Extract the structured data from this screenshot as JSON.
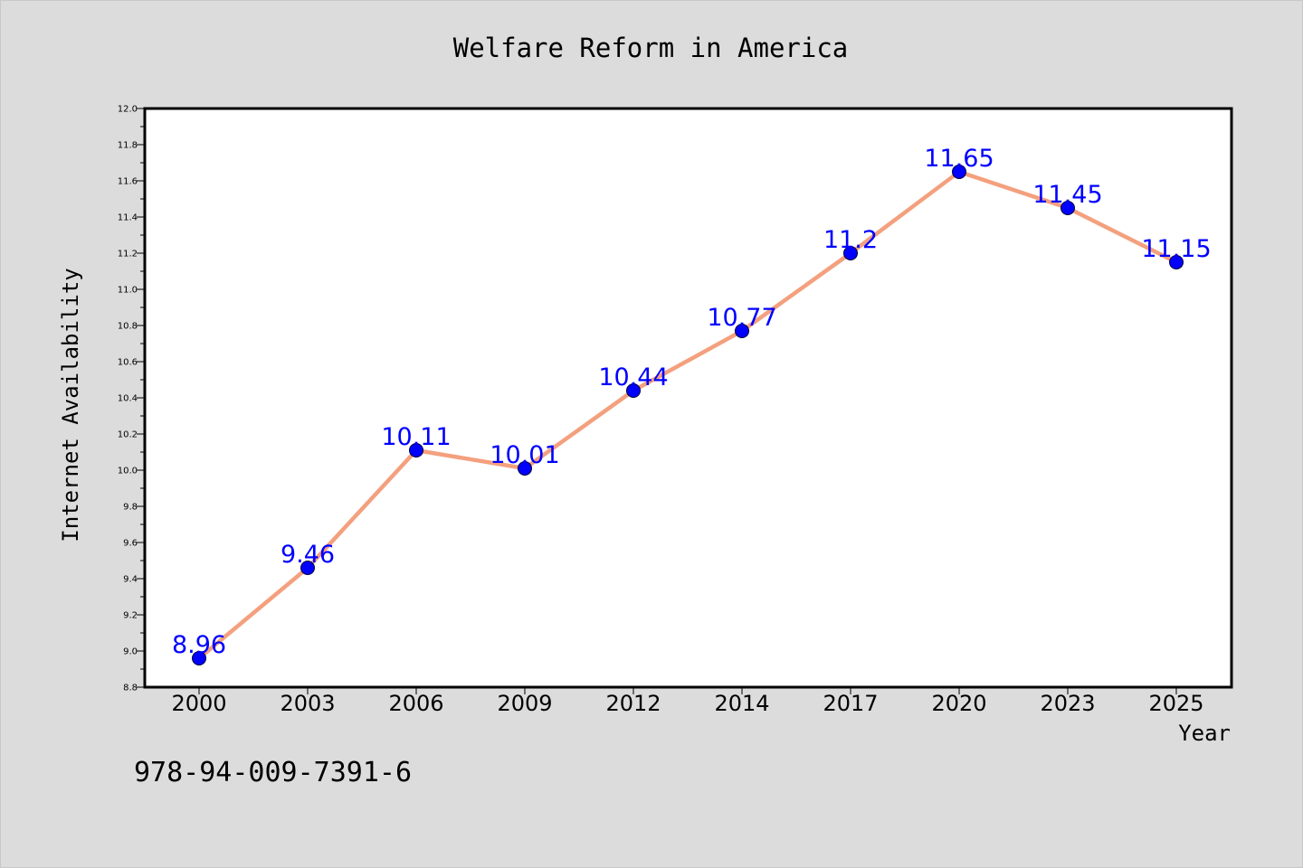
{
  "chart_data": {
    "type": "line",
    "title": "Welfare Reform in America",
    "xlabel": "Year",
    "ylabel": "Internet Availability",
    "categories": [
      "2000",
      "2003",
      "2006",
      "2009",
      "2012",
      "2014",
      "2017",
      "2020",
      "2023",
      "2025"
    ],
    "series": [
      {
        "values": [
          8.96,
          9.46,
          10.11,
          10.01,
          10.44,
          10.77,
          11.2,
          11.65,
          11.45,
          11.15
        ],
        "labels": [
          "8.96",
          "9.46",
          "10.11",
          "10.01",
          "10.44",
          "10.77",
          "11.2",
          "11.65",
          "11.45",
          "11.15"
        ],
        "line_color": "#f4a07e",
        "marker_color": "#0000ff"
      }
    ],
    "ylim": [
      8.8,
      12.0
    ],
    "yticks": [
      "8.8",
      "9.0",
      "9.2",
      "9.4",
      "9.6",
      "9.8",
      "10.0",
      "10.2",
      "10.4",
      "10.6",
      "10.8",
      "11.0",
      "11.2",
      "11.4",
      "11.6",
      "11.8",
      "12.0"
    ],
    "grid": false,
    "legend": "none"
  },
  "footer": {
    "isbn": "978-94-009-7391-6"
  },
  "colors": {
    "background": "#dcdcdc",
    "plot_area": "#ffffff",
    "data_label": "#0000ff"
  }
}
